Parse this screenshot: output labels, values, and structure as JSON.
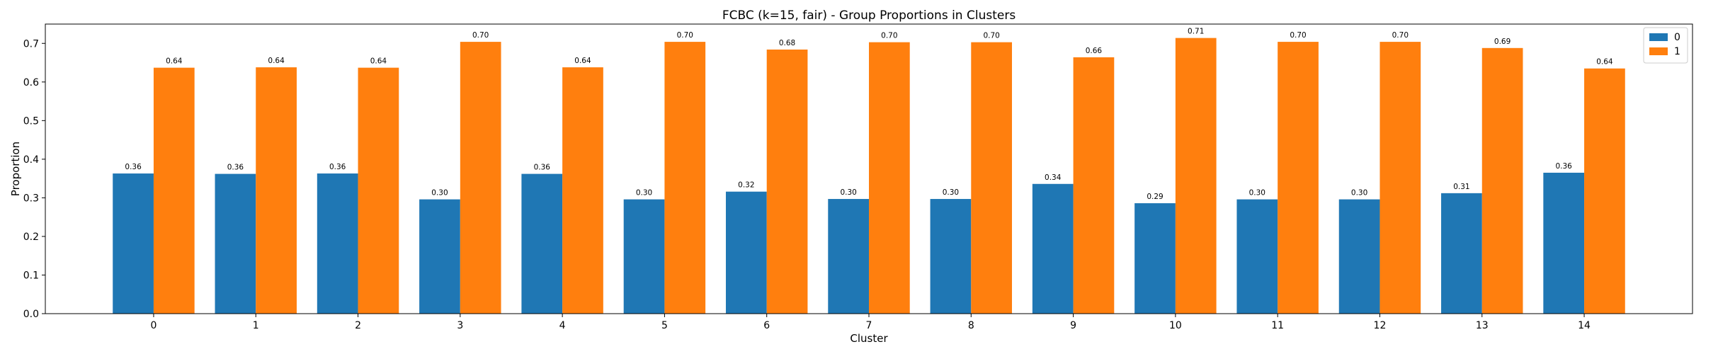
{
  "chart_data": {
    "type": "bar",
    "title": "FCBC (k=15, fair) - Group Proportions in Clusters",
    "xlabel": "Cluster",
    "ylabel": "Proportion",
    "categories": [
      "0",
      "1",
      "2",
      "3",
      "4",
      "5",
      "6",
      "7",
      "8",
      "9",
      "10",
      "11",
      "12",
      "13",
      "14"
    ],
    "ylim": [
      0,
      0.75
    ],
    "yticks": [
      "0.0",
      "0.1",
      "0.2",
      "0.3",
      "0.4",
      "0.5",
      "0.6",
      "0.7"
    ],
    "grid": false,
    "legend_position": "top-right",
    "series": [
      {
        "name": "0",
        "color": "#1f77b4",
        "values": [
          0.363,
          0.362,
          0.363,
          0.296,
          0.362,
          0.296,
          0.316,
          0.297,
          0.297,
          0.336,
          0.286,
          0.296,
          0.296,
          0.312,
          0.365
        ],
        "labels": [
          "0.36",
          "0.36",
          "0.36",
          "0.30",
          "0.36",
          "0.30",
          "0.32",
          "0.30",
          "0.30",
          "0.34",
          "0.29",
          "0.30",
          "0.30",
          "0.31",
          "0.36"
        ]
      },
      {
        "name": "1",
        "color": "#ff7f0e",
        "values": [
          0.637,
          0.638,
          0.637,
          0.704,
          0.638,
          0.704,
          0.684,
          0.703,
          0.703,
          0.664,
          0.714,
          0.704,
          0.704,
          0.688,
          0.635
        ],
        "labels": [
          "0.64",
          "0.64",
          "0.64",
          "0.70",
          "0.64",
          "0.70",
          "0.68",
          "0.70",
          "0.70",
          "0.66",
          "0.71",
          "0.70",
          "0.70",
          "0.69",
          "0.64"
        ]
      }
    ]
  }
}
